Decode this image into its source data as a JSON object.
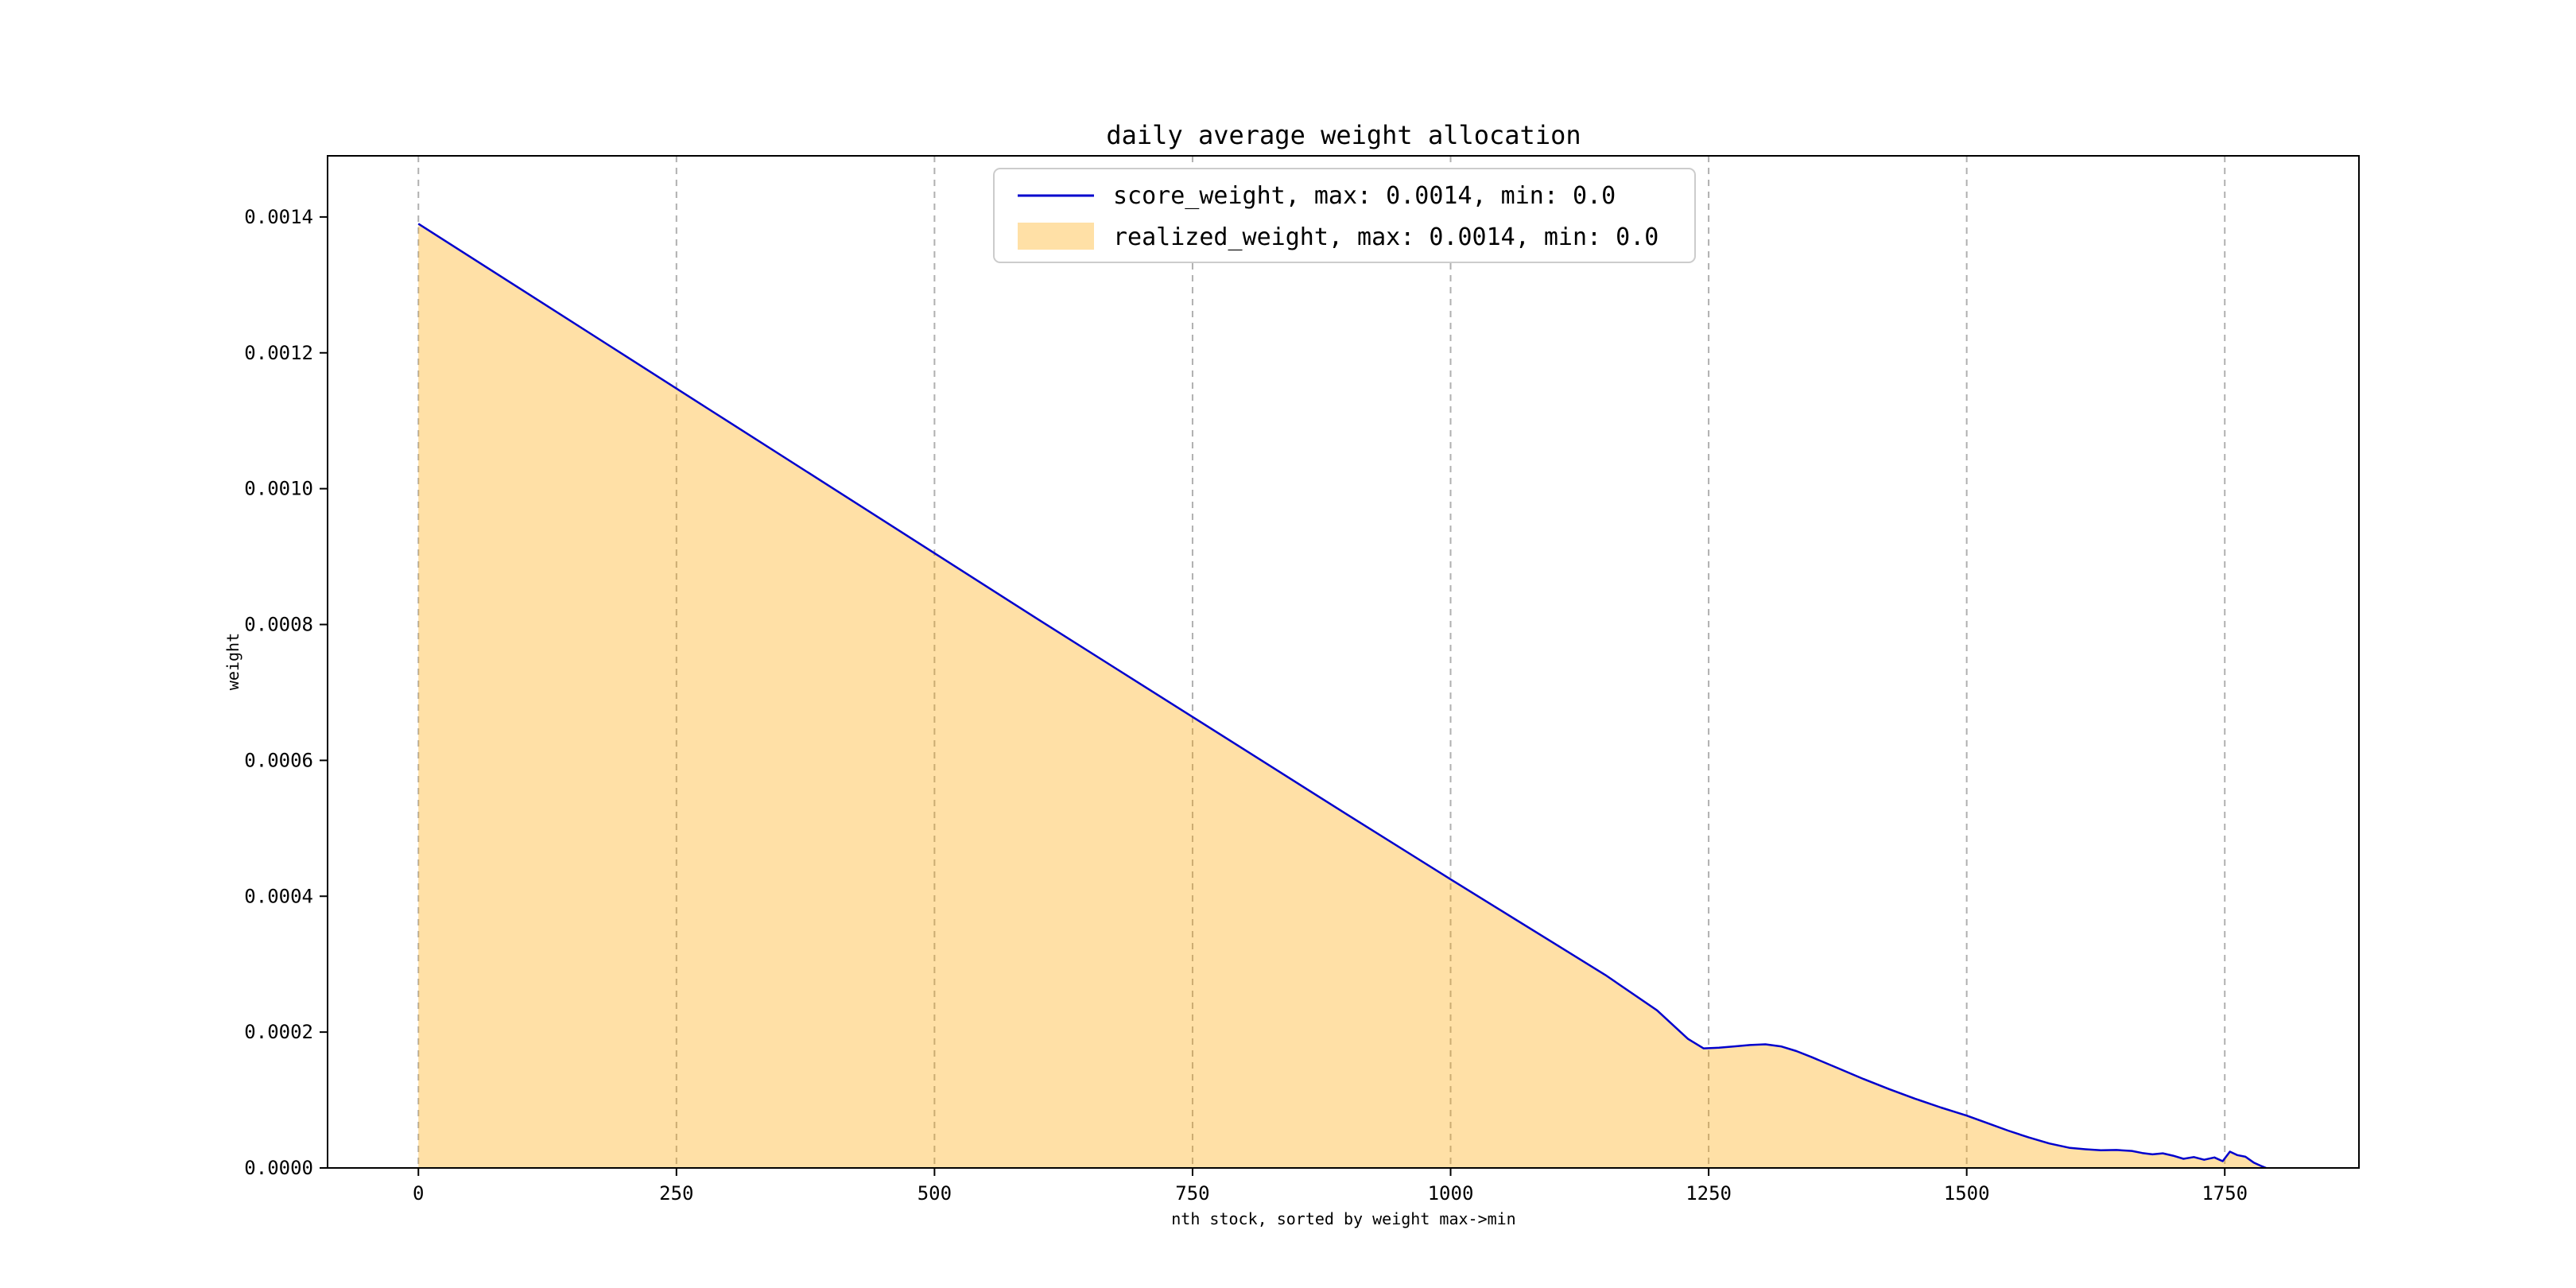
{
  "figure": {
    "background": "#ffffff"
  },
  "chart_data": {
    "type": "area",
    "title": "daily average weight allocation",
    "xlabel": "nth stock, sorted by weight max->min",
    "ylabel": "weight",
    "xlim": [
      -88,
      1880
    ],
    "ylim": [
      0,
      0.00149
    ],
    "xticks": [
      0,
      250,
      500,
      750,
      1000,
      1250,
      1500,
      1750
    ],
    "xtick_labels": [
      "0",
      "250",
      "500",
      "750",
      "1000",
      "1250",
      "1500",
      "1750"
    ],
    "yticks": [
      0,
      0.0002,
      0.0004,
      0.0006,
      0.0008,
      0.001,
      0.0012,
      0.0014
    ],
    "ytick_labels": [
      "0.0000",
      "0.0002",
      "0.0004",
      "0.0006",
      "0.0008",
      "0.0010",
      "0.0012",
      "0.0014"
    ],
    "grid": {
      "vertical": true,
      "horizontal": false,
      "style": "dashed",
      "color": "#b0b0b0"
    },
    "legend_position": "upper center",
    "series": [
      {
        "name": "score_weight",
        "legend_label": "score_weight, max: 0.0014, min: 0.0",
        "plot": "line",
        "color": "#0000cd",
        "max": 0.0014,
        "min": 0.0
      },
      {
        "name": "realized_weight",
        "legend_label": "realized_weight, max: 0.0014, min: 0.0",
        "plot": "area",
        "color": "#ffa500",
        "fill_alpha": 0.35,
        "max": 0.0014,
        "min": 0.0
      }
    ],
    "x": [
      0,
      100,
      200,
      300,
      400,
      500,
      600,
      700,
      800,
      900,
      1000,
      1050,
      1100,
      1150,
      1200,
      1230,
      1245,
      1260,
      1275,
      1290,
      1305,
      1320,
      1335,
      1350,
      1375,
      1400,
      1425,
      1450,
      1475,
      1500,
      1520,
      1540,
      1560,
      1580,
      1600,
      1615,
      1630,
      1645,
      1660,
      1670,
      1680,
      1690,
      1700,
      1710,
      1720,
      1730,
      1740,
      1748,
      1755,
      1762,
      1770,
      1778,
      1785,
      1790
    ],
    "y": [
      0.00139,
      0.001293,
      0.001196,
      0.001099,
      0.001002,
      0.000905,
      0.000808,
      0.000712,
      0.000616,
      0.00052,
      0.000425,
      0.000378,
      0.000331,
      0.000284,
      0.000232,
      0.00019,
      0.000176,
      0.000177,
      0.000179,
      0.000181,
      0.000182,
      0.000179,
      0.000172,
      0.000163,
      0.000147,
      0.000131,
      0.000116,
      0.000102,
      8.9e-05,
      7.7e-05,
      6.6e-05,
      5.5e-05,
      4.5e-05,
      3.6e-05,
      2.95e-05,
      2.75e-05,
      2.6e-05,
      2.65e-05,
      2.5e-05,
      2.2e-05,
      2e-05,
      2.15e-05,
      1.8e-05,
      1.35e-05,
      1.6e-05,
      1.2e-05,
      1.55e-05,
      1e-05,
      2.4e-05,
      1.9e-05,
      1.65e-05,
      8e-06,
      3e-06,
      0
    ]
  }
}
